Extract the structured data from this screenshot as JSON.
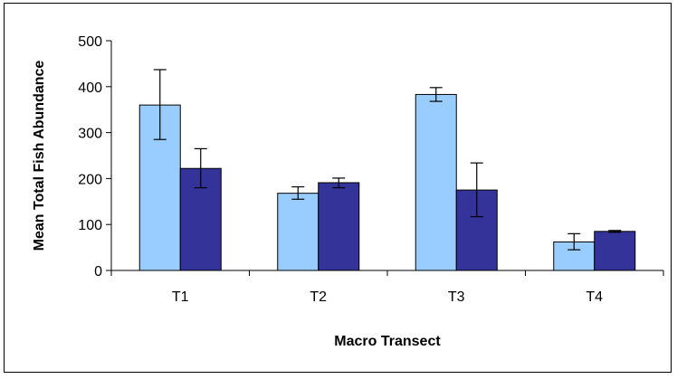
{
  "chart_data": {
    "type": "bar",
    "title": "",
    "xlabel": "Macro Transect",
    "ylabel": "Mean Total Fish Abundance",
    "categories": [
      "T1",
      "T2",
      "T3",
      "T4"
    ],
    "ylim": [
      0,
      500
    ],
    "yticks": [
      0,
      100,
      200,
      300,
      400,
      500
    ],
    "grid": false,
    "legend": "none",
    "series": [
      {
        "color": "#99ccff",
        "values": [
          360,
          168,
          383,
          62
        ],
        "error_low": [
          285,
          155,
          368,
          45
        ],
        "error_high": [
          437,
          182,
          398,
          80
        ]
      },
      {
        "color": "#333399",
        "values": [
          222,
          191,
          175,
          85
        ],
        "error_low": [
          180,
          180,
          117,
          83
        ],
        "error_high": [
          265,
          201,
          234,
          87
        ]
      }
    ]
  }
}
